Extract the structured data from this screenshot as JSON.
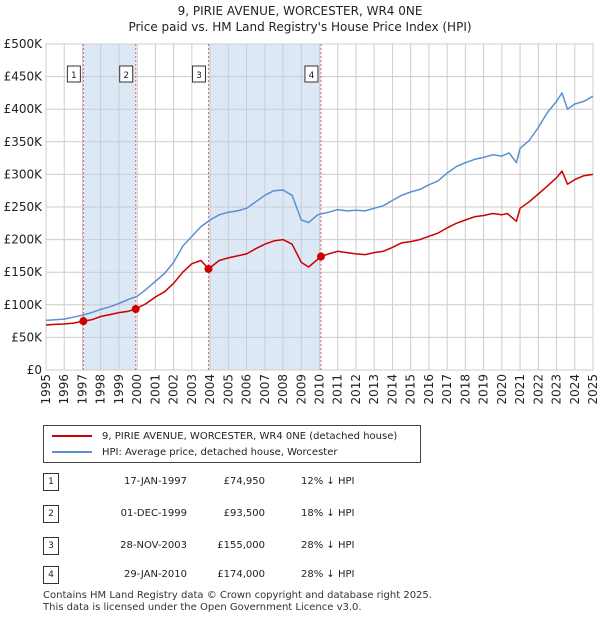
{
  "title_line1": "9, PIRIE AVENUE, WORCESTER, WR4 0NE",
  "title_line2": "Price paid vs. HM Land Registry's House Price Index (HPI)",
  "colors": {
    "property": "#cc0000",
    "hpi": "#5b8fd0",
    "shade": "#dde8f7",
    "grid": "#cccccc",
    "vline": "#e06666"
  },
  "chart_data": {
    "type": "line",
    "xlim": [
      1995,
      2025
    ],
    "ylim": [
      0,
      500000
    ],
    "x_ticks": [
      "1995",
      "1996",
      "1997",
      "1998",
      "1999",
      "2000",
      "2001",
      "2002",
      "2003",
      "2004",
      "2005",
      "2006",
      "2007",
      "2008",
      "2009",
      "2010",
      "2011",
      "2012",
      "2013",
      "2014",
      "2015",
      "2016",
      "2017",
      "2018",
      "2019",
      "2020",
      "2021",
      "2022",
      "2023",
      "2024",
      "2025"
    ],
    "y_ticks": [
      {
        "value": 0,
        "label": "£0"
      },
      {
        "value": 50000,
        "label": "£50K"
      },
      {
        "value": 100000,
        "label": "£100K"
      },
      {
        "value": 150000,
        "label": "£150K"
      },
      {
        "value": 200000,
        "label": "£200K"
      },
      {
        "value": 250000,
        "label": "£250K"
      },
      {
        "value": 300000,
        "label": "£300K"
      },
      {
        "value": 350000,
        "label": "£350K"
      },
      {
        "value": 400000,
        "label": "£400K"
      },
      {
        "value": 450000,
        "label": "£450K"
      },
      {
        "value": 500000,
        "label": "£500K"
      }
    ],
    "shaded_ranges": [
      [
        1997.05,
        1999.92
      ],
      [
        2003.91,
        2010.08
      ]
    ],
    "series": [
      {
        "name": "9, PIRIE AVENUE, WORCESTER, WR4 0NE (detached house)",
        "color": "#cc0000",
        "points": [
          [
            1995.0,
            69000
          ],
          [
            1995.5,
            70000
          ],
          [
            1996.0,
            70500
          ],
          [
            1996.5,
            72000
          ],
          [
            1997.05,
            74950
          ],
          [
            1997.5,
            77000
          ],
          [
            1998.0,
            82000
          ],
          [
            1998.5,
            85000
          ],
          [
            1999.0,
            88000
          ],
          [
            1999.5,
            90000
          ],
          [
            1999.92,
            93500
          ],
          [
            2000.5,
            102000
          ],
          [
            2001.0,
            112000
          ],
          [
            2001.5,
            120000
          ],
          [
            2002.0,
            133000
          ],
          [
            2002.5,
            150000
          ],
          [
            2003.0,
            163000
          ],
          [
            2003.5,
            168000
          ],
          [
            2003.91,
            155000
          ],
          [
            2004.5,
            168000
          ],
          [
            2005.0,
            172000
          ],
          [
            2005.5,
            175000
          ],
          [
            2006.0,
            178000
          ],
          [
            2006.5,
            186000
          ],
          [
            2007.0,
            193000
          ],
          [
            2007.5,
            198000
          ],
          [
            2008.0,
            200000
          ],
          [
            2008.5,
            193000
          ],
          [
            2009.0,
            165000
          ],
          [
            2009.4,
            158000
          ],
          [
            2010.08,
            174000
          ],
          [
            2010.5,
            178000
          ],
          [
            2011.0,
            182000
          ],
          [
            2011.5,
            180000
          ],
          [
            2012.0,
            178000
          ],
          [
            2012.5,
            177000
          ],
          [
            2013.0,
            180000
          ],
          [
            2013.5,
            182000
          ],
          [
            2014.0,
            188000
          ],
          [
            2014.5,
            195000
          ],
          [
            2015.0,
            197000
          ],
          [
            2015.5,
            200000
          ],
          [
            2016.0,
            205000
          ],
          [
            2016.5,
            210000
          ],
          [
            2017.0,
            218000
          ],
          [
            2017.5,
            225000
          ],
          [
            2018.0,
            230000
          ],
          [
            2018.5,
            235000
          ],
          [
            2019.0,
            237000
          ],
          [
            2019.5,
            240000
          ],
          [
            2020.0,
            238000
          ],
          [
            2020.3,
            240000
          ],
          [
            2020.8,
            228000
          ],
          [
            2021.0,
            248000
          ],
          [
            2021.5,
            258000
          ],
          [
            2022.0,
            270000
          ],
          [
            2022.5,
            282000
          ],
          [
            2023.0,
            295000
          ],
          [
            2023.3,
            305000
          ],
          [
            2023.6,
            285000
          ],
          [
            2024.0,
            292000
          ],
          [
            2024.5,
            298000
          ],
          [
            2025.0,
            300000
          ]
        ]
      },
      {
        "name": "HPI: Average price, detached house, Worcester",
        "color": "#5b8fd0",
        "points": [
          [
            1995.0,
            76000
          ],
          [
            1995.5,
            77000
          ],
          [
            1996.0,
            78000
          ],
          [
            1996.5,
            81000
          ],
          [
            1997.0,
            84000
          ],
          [
            1997.5,
            88000
          ],
          [
            1998.0,
            93000
          ],
          [
            1998.5,
            97000
          ],
          [
            1999.0,
            102000
          ],
          [
            1999.5,
            108000
          ],
          [
            2000.0,
            113000
          ],
          [
            2000.5,
            124000
          ],
          [
            2001.0,
            136000
          ],
          [
            2001.5,
            148000
          ],
          [
            2002.0,
            165000
          ],
          [
            2002.5,
            190000
          ],
          [
            2003.0,
            205000
          ],
          [
            2003.5,
            220000
          ],
          [
            2004.0,
            230000
          ],
          [
            2004.5,
            238000
          ],
          [
            2005.0,
            242000
          ],
          [
            2005.5,
            244000
          ],
          [
            2006.0,
            248000
          ],
          [
            2006.5,
            258000
          ],
          [
            2007.0,
            268000
          ],
          [
            2007.5,
            275000
          ],
          [
            2008.0,
            276000
          ],
          [
            2008.5,
            268000
          ],
          [
            2009.0,
            230000
          ],
          [
            2009.4,
            226000
          ],
          [
            2009.9,
            238000
          ],
          [
            2010.5,
            242000
          ],
          [
            2011.0,
            246000
          ],
          [
            2011.5,
            244000
          ],
          [
            2012.0,
            245000
          ],
          [
            2012.5,
            244000
          ],
          [
            2013.0,
            248000
          ],
          [
            2013.5,
            252000
          ],
          [
            2014.0,
            260000
          ],
          [
            2014.5,
            268000
          ],
          [
            2015.0,
            273000
          ],
          [
            2015.5,
            277000
          ],
          [
            2016.0,
            284000
          ],
          [
            2016.5,
            290000
          ],
          [
            2017.0,
            302000
          ],
          [
            2017.5,
            312000
          ],
          [
            2018.0,
            318000
          ],
          [
            2018.5,
            323000
          ],
          [
            2019.0,
            326000
          ],
          [
            2019.5,
            330000
          ],
          [
            2020.0,
            328000
          ],
          [
            2020.4,
            333000
          ],
          [
            2020.8,
            318000
          ],
          [
            2021.0,
            340000
          ],
          [
            2021.5,
            352000
          ],
          [
            2022.0,
            372000
          ],
          [
            2022.5,
            395000
          ],
          [
            2023.0,
            412000
          ],
          [
            2023.3,
            425000
          ],
          [
            2023.6,
            400000
          ],
          [
            2024.0,
            408000
          ],
          [
            2024.5,
            412000
          ],
          [
            2025.0,
            420000
          ]
        ]
      }
    ],
    "sales": [
      {
        "id": "1",
        "x": 1997.05,
        "price": 74950
      },
      {
        "id": "2",
        "x": 1999.92,
        "price": 93500
      },
      {
        "id": "3",
        "x": 2003.91,
        "price": 155000
      },
      {
        "id": "4",
        "x": 2010.08,
        "price": 174000
      }
    ]
  },
  "legend": [
    {
      "label": "9, PIRIE AVENUE, WORCESTER, WR4 0NE (detached house)"
    },
    {
      "label": "HPI: Average price, detached house, Worcester"
    }
  ],
  "table": [
    {
      "num": "1",
      "date": "17-JAN-1997",
      "price": "£74,950",
      "hpi": "12% ↓ HPI"
    },
    {
      "num": "2",
      "date": "01-DEC-1999",
      "price": "£93,500",
      "hpi": "18% ↓ HPI"
    },
    {
      "num": "3",
      "date": "28-NOV-2003",
      "price": "£155,000",
      "hpi": "28% ↓ HPI"
    },
    {
      "num": "4",
      "date": "29-JAN-2010",
      "price": "£174,000",
      "hpi": "28% ↓ HPI"
    }
  ],
  "footer_line1": "Contains HM Land Registry data © Crown copyright and database right 2025.",
  "footer_line2": "This data is licensed under the Open Government Licence v3.0."
}
